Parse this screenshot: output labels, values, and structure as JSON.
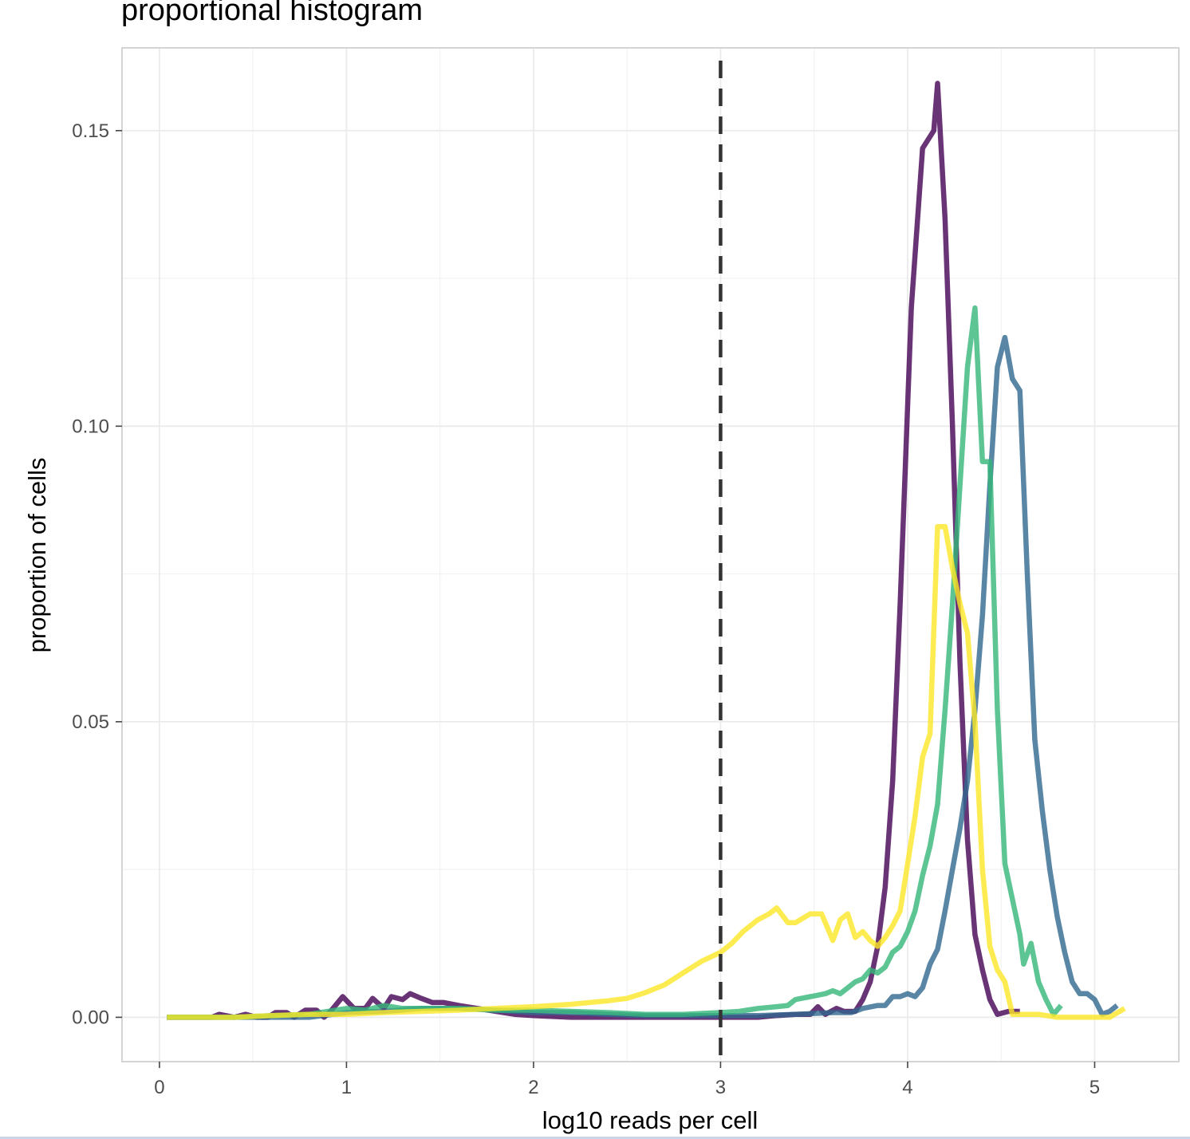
{
  "chart_data": {
    "type": "line",
    "title": "proportional histogram",
    "xlabel": "log10 reads per cell",
    "ylabel": "proportion of cells",
    "xlim": [
      -0.2,
      5.45
    ],
    "ylim": [
      -0.0075,
      0.164
    ],
    "x_ticks": [
      0,
      1,
      2,
      3,
      4,
      5
    ],
    "x_tick_labels": [
      "0",
      "1",
      "2",
      "3",
      "4",
      "5"
    ],
    "y_ticks": [
      0.0,
      0.05,
      0.1,
      0.15
    ],
    "y_tick_labels": [
      "0.00",
      "0.05",
      "0.10",
      "0.15"
    ],
    "grid": true,
    "legend": "none",
    "reference_line": {
      "x": 3,
      "style": "dashed",
      "color": "#333333"
    },
    "series": [
      {
        "color": "#440154",
        "points": [
          [
            0.04,
            0
          ],
          [
            0.1,
            0
          ],
          [
            0.2,
            0
          ],
          [
            0.28,
            0
          ],
          [
            0.32,
            0.0005
          ],
          [
            0.4,
            0
          ],
          [
            0.46,
            0.0005
          ],
          [
            0.52,
            0
          ],
          [
            0.58,
            0
          ],
          [
            0.62,
            0.0008
          ],
          [
            0.68,
            0.0008
          ],
          [
            0.72,
            0
          ],
          [
            0.78,
            0.0012
          ],
          [
            0.84,
            0.0012
          ],
          [
            0.88,
            0
          ],
          [
            0.92,
            0.0012
          ],
          [
            0.98,
            0.0035
          ],
          [
            1.04,
            0.0015
          ],
          [
            1.1,
            0.0015
          ],
          [
            1.14,
            0.0032
          ],
          [
            1.2,
            0.0015
          ],
          [
            1.24,
            0.0035
          ],
          [
            1.3,
            0.003
          ],
          [
            1.34,
            0.004
          ],
          [
            1.4,
            0.0032
          ],
          [
            1.46,
            0.0025
          ],
          [
            1.52,
            0.0025
          ],
          [
            1.6,
            0.002
          ],
          [
            1.7,
            0.0015
          ],
          [
            1.8,
            0.001
          ],
          [
            1.9,
            0.0005
          ],
          [
            2.0,
            0.0003
          ],
          [
            2.2,
            0
          ],
          [
            2.4,
            0
          ],
          [
            2.6,
            0
          ],
          [
            2.8,
            0
          ],
          [
            3.0,
            0
          ],
          [
            3.2,
            0
          ],
          [
            3.3,
            0.0003
          ],
          [
            3.4,
            0.0005
          ],
          [
            3.48,
            0.0005
          ],
          [
            3.52,
            0.0018
          ],
          [
            3.56,
            0.0005
          ],
          [
            3.62,
            0.0015
          ],
          [
            3.66,
            0.001
          ],
          [
            3.72,
            0.001
          ],
          [
            3.76,
            0.003
          ],
          [
            3.8,
            0.006
          ],
          [
            3.84,
            0.012
          ],
          [
            3.88,
            0.022
          ],
          [
            3.92,
            0.04
          ],
          [
            3.96,
            0.07
          ],
          [
            4.02,
            0.12
          ],
          [
            4.08,
            0.147
          ],
          [
            4.14,
            0.15
          ],
          [
            4.16,
            0.158
          ],
          [
            4.2,
            0.135
          ],
          [
            4.24,
            0.1
          ],
          [
            4.28,
            0.06
          ],
          [
            4.32,
            0.03
          ],
          [
            4.36,
            0.014
          ],
          [
            4.4,
            0.008
          ],
          [
            4.44,
            0.003
          ],
          [
            4.48,
            0.0005
          ],
          [
            4.54,
            0.001
          ],
          [
            4.6,
            0.001
          ]
        ]
      },
      {
        "color": "#31688e",
        "points": [
          [
            0.04,
            0
          ],
          [
            0.2,
            0
          ],
          [
            0.4,
            0
          ],
          [
            0.6,
            0
          ],
          [
            0.8,
            0
          ],
          [
            1.0,
            0.0008
          ],
          [
            1.2,
            0.001
          ],
          [
            1.4,
            0.0015
          ],
          [
            1.6,
            0.0015
          ],
          [
            1.8,
            0.0012
          ],
          [
            2.0,
            0.0008
          ],
          [
            2.2,
            0.0008
          ],
          [
            2.4,
            0.0005
          ],
          [
            2.6,
            0.0003
          ],
          [
            2.8,
            0.0003
          ],
          [
            3.0,
            0.0003
          ],
          [
            3.2,
            0.0003
          ],
          [
            3.4,
            0.0005
          ],
          [
            3.6,
            0.0008
          ],
          [
            3.7,
            0.0008
          ],
          [
            3.76,
            0.0015
          ],
          [
            3.84,
            0.002
          ],
          [
            3.88,
            0.002
          ],
          [
            3.92,
            0.0035
          ],
          [
            3.96,
            0.0035
          ],
          [
            4.0,
            0.004
          ],
          [
            4.04,
            0.0035
          ],
          [
            4.08,
            0.005
          ],
          [
            4.12,
            0.009
          ],
          [
            4.16,
            0.0115
          ],
          [
            4.2,
            0.018
          ],
          [
            4.24,
            0.025
          ],
          [
            4.28,
            0.032
          ],
          [
            4.32,
            0.04
          ],
          [
            4.36,
            0.052
          ],
          [
            4.4,
            0.068
          ],
          [
            4.44,
            0.09
          ],
          [
            4.48,
            0.11
          ],
          [
            4.52,
            0.115
          ],
          [
            4.56,
            0.108
          ],
          [
            4.6,
            0.106
          ],
          [
            4.64,
            0.075
          ],
          [
            4.68,
            0.047
          ],
          [
            4.72,
            0.035
          ],
          [
            4.76,
            0.025
          ],
          [
            4.8,
            0.017
          ],
          [
            4.84,
            0.011
          ],
          [
            4.88,
            0.006
          ],
          [
            4.92,
            0.004
          ],
          [
            4.96,
            0.004
          ],
          [
            5.0,
            0.003
          ],
          [
            5.04,
            0.0005
          ],
          [
            5.08,
            0.001
          ],
          [
            5.12,
            0.002
          ]
        ]
      },
      {
        "color": "#35b779",
        "points": [
          [
            0.04,
            0
          ],
          [
            0.2,
            0
          ],
          [
            0.4,
            0
          ],
          [
            0.6,
            0.0003
          ],
          [
            0.8,
            0.0005
          ],
          [
            1.0,
            0.0015
          ],
          [
            1.1,
            0.0012
          ],
          [
            1.2,
            0.002
          ],
          [
            1.3,
            0.0015
          ],
          [
            1.4,
            0.0015
          ],
          [
            1.6,
            0.0015
          ],
          [
            1.8,
            0.0012
          ],
          [
            2.0,
            0.0012
          ],
          [
            2.2,
            0.001
          ],
          [
            2.4,
            0.0008
          ],
          [
            2.6,
            0.0005
          ],
          [
            2.8,
            0.0005
          ],
          [
            3.0,
            0.0008
          ],
          [
            3.1,
            0.001
          ],
          [
            3.2,
            0.0015
          ],
          [
            3.3,
            0.0018
          ],
          [
            3.36,
            0.002
          ],
          [
            3.4,
            0.003
          ],
          [
            3.48,
            0.0035
          ],
          [
            3.56,
            0.004
          ],
          [
            3.6,
            0.0045
          ],
          [
            3.64,
            0.004
          ],
          [
            3.68,
            0.005
          ],
          [
            3.72,
            0.006
          ],
          [
            3.76,
            0.0065
          ],
          [
            3.8,
            0.008
          ],
          [
            3.84,
            0.0075
          ],
          [
            3.88,
            0.0085
          ],
          [
            3.92,
            0.011
          ],
          [
            3.96,
            0.012
          ],
          [
            4.0,
            0.0145
          ],
          [
            4.04,
            0.018
          ],
          [
            4.08,
            0.024
          ],
          [
            4.12,
            0.029
          ],
          [
            4.16,
            0.036
          ],
          [
            4.2,
            0.052
          ],
          [
            4.24,
            0.07
          ],
          [
            4.28,
            0.09
          ],
          [
            4.32,
            0.11
          ],
          [
            4.36,
            0.12
          ],
          [
            4.4,
            0.094
          ],
          [
            4.44,
            0.094
          ],
          [
            4.48,
            0.052
          ],
          [
            4.52,
            0.026
          ],
          [
            4.56,
            0.02
          ],
          [
            4.6,
            0.014
          ],
          [
            4.62,
            0.009
          ],
          [
            4.66,
            0.0125
          ],
          [
            4.7,
            0.006
          ],
          [
            4.74,
            0.003
          ],
          [
            4.78,
            0.0005
          ],
          [
            4.82,
            0.002
          ]
        ]
      },
      {
        "color": "#fde725",
        "points": [
          [
            0.04,
            0
          ],
          [
            0.2,
            0
          ],
          [
            0.4,
            0
          ],
          [
            0.6,
            0.0003
          ],
          [
            0.8,
            0.0005
          ],
          [
            1.0,
            0.0005
          ],
          [
            1.2,
            0.0008
          ],
          [
            1.4,
            0.001
          ],
          [
            1.6,
            0.0012
          ],
          [
            1.8,
            0.0015
          ],
          [
            2.0,
            0.0018
          ],
          [
            2.2,
            0.0022
          ],
          [
            2.4,
            0.0028
          ],
          [
            2.5,
            0.0032
          ],
          [
            2.6,
            0.0042
          ],
          [
            2.7,
            0.0055
          ],
          [
            2.8,
            0.0075
          ],
          [
            2.9,
            0.0095
          ],
          [
            3.0,
            0.011
          ],
          [
            3.06,
            0.0125
          ],
          [
            3.12,
            0.0145
          ],
          [
            3.2,
            0.0165
          ],
          [
            3.26,
            0.0175
          ],
          [
            3.3,
            0.0185
          ],
          [
            3.36,
            0.016
          ],
          [
            3.4,
            0.016
          ],
          [
            3.48,
            0.0175
          ],
          [
            3.54,
            0.0175
          ],
          [
            3.6,
            0.013
          ],
          [
            3.64,
            0.0165
          ],
          [
            3.68,
            0.0175
          ],
          [
            3.72,
            0.0135
          ],
          [
            3.76,
            0.0145
          ],
          [
            3.8,
            0.013
          ],
          [
            3.84,
            0.012
          ],
          [
            3.88,
            0.0135
          ],
          [
            3.92,
            0.0155
          ],
          [
            3.96,
            0.018
          ],
          [
            4.0,
            0.026
          ],
          [
            4.04,
            0.034
          ],
          [
            4.08,
            0.044
          ],
          [
            4.12,
            0.048
          ],
          [
            4.16,
            0.083
          ],
          [
            4.2,
            0.083
          ],
          [
            4.24,
            0.076
          ],
          [
            4.28,
            0.07
          ],
          [
            4.32,
            0.065
          ],
          [
            4.36,
            0.05
          ],
          [
            4.4,
            0.025
          ],
          [
            4.44,
            0.012
          ],
          [
            4.48,
            0.008
          ],
          [
            4.52,
            0.006
          ],
          [
            4.56,
            0.0005
          ],
          [
            4.6,
            0.0005
          ],
          [
            4.7,
            0.0005
          ],
          [
            4.8,
            0
          ],
          [
            4.9,
            0
          ],
          [
            5.0,
            0
          ],
          [
            5.08,
            0
          ],
          [
            5.16,
            0.0015
          ]
        ]
      }
    ]
  }
}
